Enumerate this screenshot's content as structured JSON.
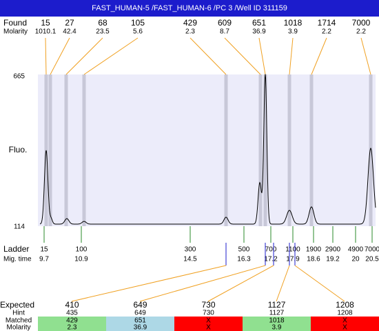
{
  "header": {
    "title": "FAST_HUMAN-5 /FAST_HUMAN-6 /PC 3 /Well ID 311159"
  },
  "found": {
    "label": "Found",
    "molarity_label": "Molarity",
    "peaks": [
      {
        "size": 15,
        "molarity": 1010.1
      },
      {
        "size": 27,
        "molarity": 42.4
      },
      {
        "size": 68,
        "molarity": 23.5
      },
      {
        "size": 105,
        "molarity": 5.6
      },
      {
        "size": 429,
        "molarity": 2.3
      },
      {
        "size": 609,
        "molarity": 8.7
      },
      {
        "size": 651,
        "molarity": 36.9
      },
      {
        "size": 1018,
        "molarity": 3.9
      },
      {
        "size": 1714,
        "molarity": 2.2
      },
      {
        "size": 7000,
        "molarity": 2.2
      }
    ]
  },
  "plot": {
    "y_label": "Fluo.",
    "y_max": 665,
    "y_min": 114
  },
  "ladder": {
    "label": "Ladder",
    "time_label": "Mig. time",
    "markers": [
      {
        "size": 15,
        "time": 9.7
      },
      {
        "size": 100,
        "time": 10.9
      },
      {
        "size": 300,
        "time": 14.5
      },
      {
        "size": 500,
        "time": 16.3
      },
      {
        "size": 700,
        "time": 17.2
      },
      {
        "size": 1100,
        "time": 17.9
      },
      {
        "size": 1900,
        "time": 18.6
      },
      {
        "size": 2900,
        "time": 19.2
      },
      {
        "size": 4900,
        "time": 20
      },
      {
        "size": 7000,
        "time": 20.5
      }
    ]
  },
  "expected": {
    "label": "Expected",
    "hint_label": "Hint",
    "matched_label": "Matched",
    "molarity_label": "Molarity",
    "rows": [
      {
        "expected": 410,
        "hint": 435,
        "matched": 429,
        "molarity": 2.3,
        "color": "#90e090"
      },
      {
        "expected": 649,
        "hint": 649,
        "matched": 651,
        "molarity": 36.9,
        "color": "#add8e6"
      },
      {
        "expected": 730,
        "hint": 730,
        "matched": "X",
        "molarity": "X",
        "color": "#ff0000"
      },
      {
        "expected": 1127,
        "hint": 1127,
        "matched": 1018,
        "molarity": 3.9,
        "color": "#90e090"
      },
      {
        "expected": 1208,
        "hint": 1208,
        "matched": "X",
        "molarity": "X",
        "color": "#ff0000"
      }
    ]
  }
}
